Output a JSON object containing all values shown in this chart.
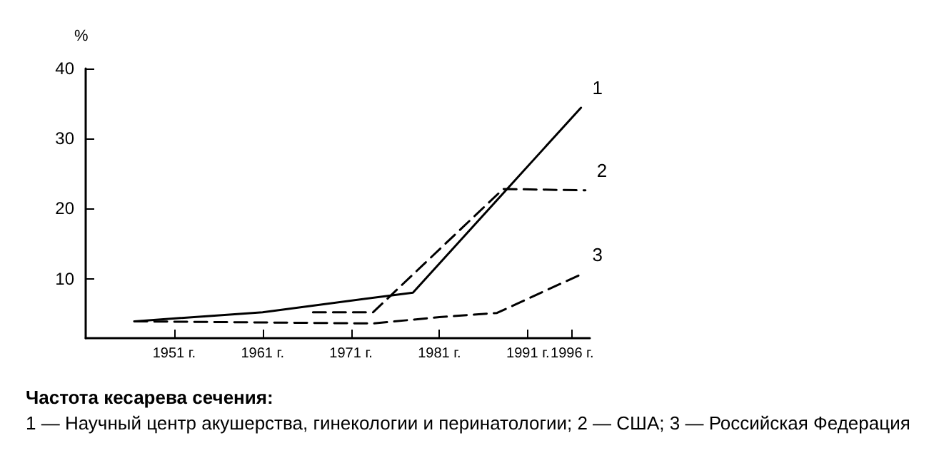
{
  "chart_data": {
    "type": "line",
    "title": "Частота кесарева сечения:",
    "annotations": [
      "1 — Научный центр акушерства, гинекологии и перинатологии; 2 — США; 3 — Российская Федерация"
    ],
    "ylabel": "%",
    "series": [
      {
        "name": "1",
        "color": "#000000",
        "line_style": "solid",
        "x": [
          1946.5,
          1961,
          1978,
          1997
        ],
        "values": [
          3.9,
          5.2,
          8,
          34.4
        ]
      },
      {
        "name": "2",
        "color": "#000000",
        "line_style": "dashed",
        "x": [
          1966.7,
          1973.5,
          1988.2,
          1997.5
        ],
        "values": [
          5.2,
          5.2,
          22.8,
          22.6
        ]
      },
      {
        "name": "3",
        "color": "#000000",
        "line_style": "dashed",
        "x": [
          1946.5,
          1973.5,
          1981,
          1987.5,
          1997
        ],
        "values": [
          3.9,
          3.6,
          4.5,
          5.1,
          10.6
        ]
      }
    ],
    "xlim": [
      1941,
      1998
    ],
    "xticks": [
      {
        "value": 1951,
        "label": "1951 г."
      },
      {
        "value": 1961,
        "label": "1961 г."
      },
      {
        "value": 1971,
        "label": "1971 г."
      },
      {
        "value": 1981,
        "label": "1981 г."
      },
      {
        "value": 1991,
        "label": "1991 г."
      },
      {
        "value": 1996,
        "label": "1996 г."
      }
    ],
    "ylim": [
      1.5,
      40
    ],
    "yticks": [
      10,
      20,
      30,
      40
    ],
    "grid": false,
    "legend": false,
    "marker": "none"
  }
}
